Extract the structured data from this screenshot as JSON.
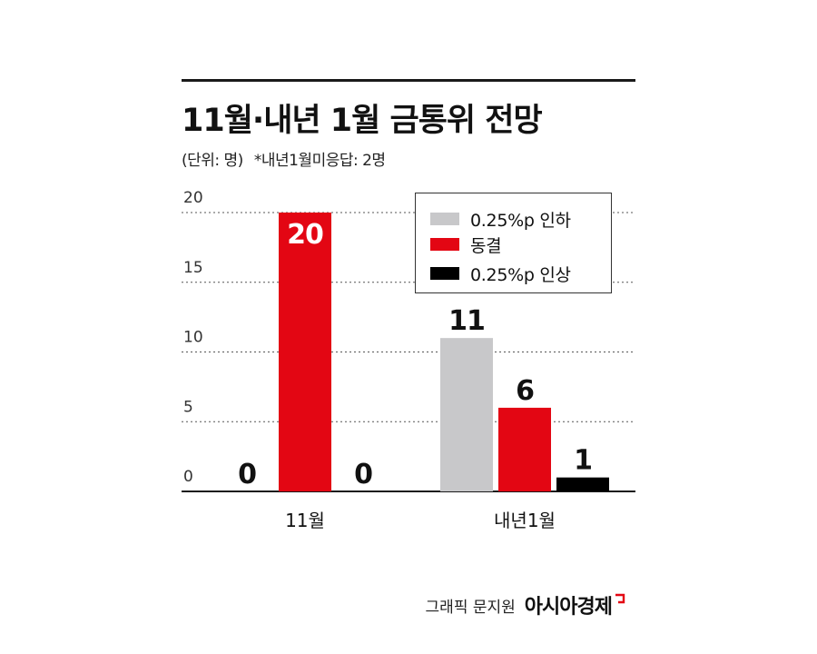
{
  "header": {
    "title": "11월·내년 1월 금통위 전망",
    "unit": "(단위: 명)",
    "note": "*내년1월미응답: 2명"
  },
  "credit": {
    "graphic": "그래픽 문지원",
    "logo": "아시아경제"
  },
  "colors": {
    "cut": "#c8c8ca",
    "hold": "#e30613",
    "hike": "#000000",
    "grid": "#555555"
  },
  "chart_data": {
    "type": "bar",
    "categories": [
      "11월",
      "내년1월"
    ],
    "series": [
      {
        "name": "0.25%p 인하",
        "values": [
          0,
          11
        ]
      },
      {
        "name": "동결",
        "values": [
          20,
          6
        ]
      },
      {
        "name": "0.25%p 인상",
        "values": [
          0,
          1
        ]
      }
    ],
    "y_ticks": [
      0,
      5,
      10,
      15,
      20
    ],
    "ylim": [
      0,
      20
    ],
    "grid": "dotted horizontal",
    "legend_position": "top-right",
    "data_labels": [
      [
        "0",
        "20",
        "0"
      ],
      [
        "11",
        "6",
        "1"
      ]
    ]
  }
}
